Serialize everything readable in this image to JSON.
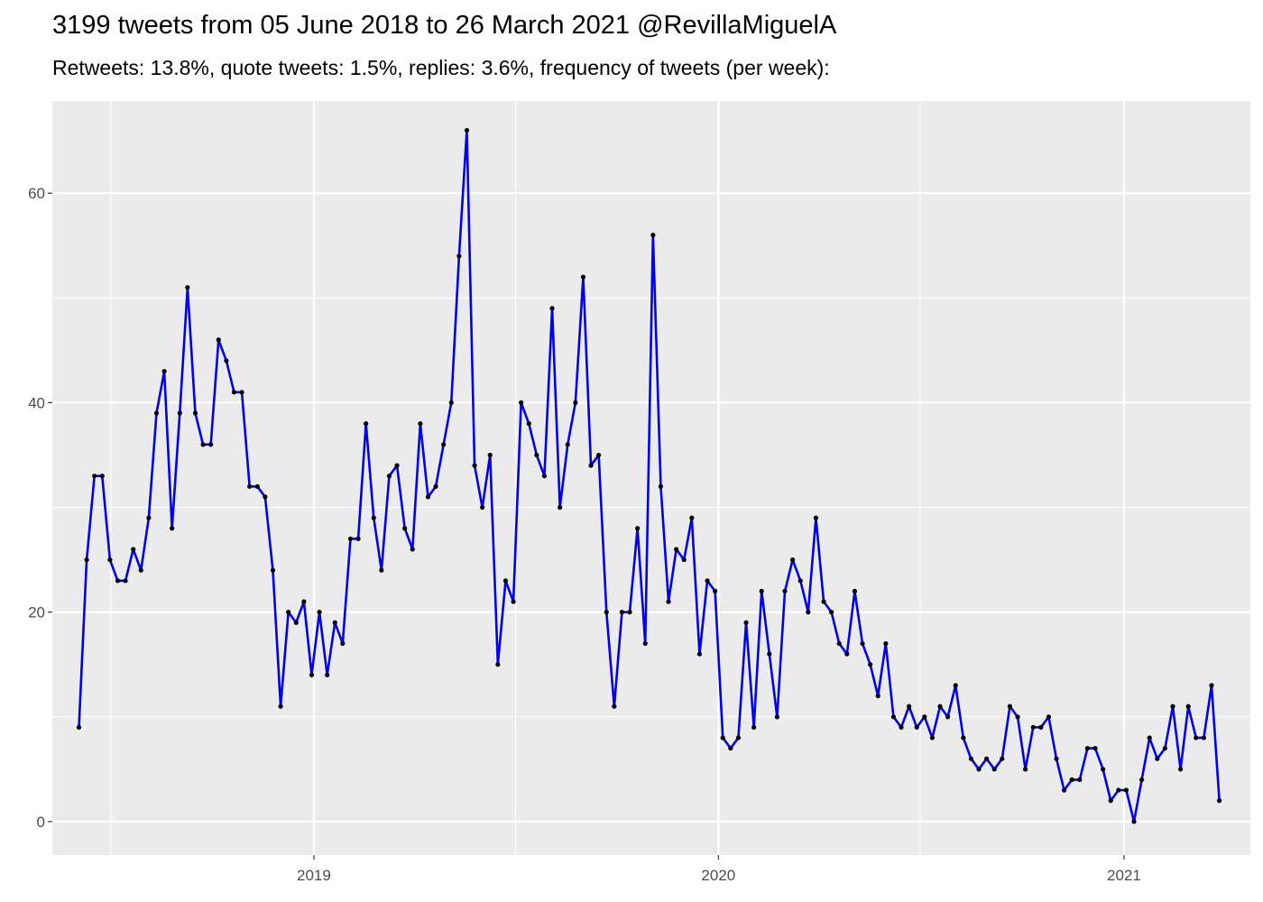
{
  "chart_data": {
    "type": "line",
    "title": "3199 tweets from 05 June 2018 to 26 March 2021 @RevillaMiguelA",
    "subtitle": "Retweets: 13.8%, quote tweets: 1.5%, replies: 3.6%, frequency of tweets (per week):",
    "xlabel": "",
    "ylabel": "",
    "x_start": "2018-06-03",
    "x_step_days": 7,
    "xlim": [
      "2018-05-10",
      "2021-04-25"
    ],
    "ylim": [
      -3.2,
      68.8
    ],
    "y_ticks": [
      0,
      20,
      40,
      60
    ],
    "x_ticks": [
      {
        "label": "2019",
        "date": "2019-01-01"
      },
      {
        "label": "2020",
        "date": "2020-01-01"
      },
      {
        "label": "2021",
        "date": "2021-01-01"
      }
    ],
    "x_minor_dates": [
      "2018-07-02",
      "2019-07-02",
      "2020-07-01"
    ],
    "grid": true,
    "legend": "none",
    "line_color": "#0000ee",
    "point_color": "#000000",
    "panel_color": "#ebebeb",
    "values": [
      9,
      25,
      33,
      33,
      25,
      23,
      23,
      26,
      24,
      29,
      39,
      43,
      28,
      39,
      51,
      39,
      36,
      36,
      46,
      44,
      41,
      41,
      32,
      32,
      31,
      24,
      11,
      20,
      19,
      21,
      14,
      20,
      14,
      19,
      17,
      27,
      27,
      38,
      29,
      24,
      33,
      34,
      28,
      26,
      38,
      31,
      32,
      36,
      40,
      54,
      66,
      34,
      30,
      35,
      15,
      23,
      21,
      40,
      38,
      35,
      33,
      49,
      30,
      36,
      40,
      52,
      34,
      35,
      20,
      11,
      20,
      20,
      28,
      17,
      56,
      32,
      21,
      26,
      25,
      29,
      16,
      23,
      22,
      8,
      7,
      8,
      19,
      9,
      22,
      16,
      10,
      22,
      25,
      23,
      20,
      29,
      21,
      20,
      17,
      16,
      22,
      17,
      15,
      12,
      17,
      10,
      9,
      11,
      9,
      10,
      8,
      11,
      10,
      13,
      8,
      6,
      5,
      6,
      5,
      6,
      11,
      10,
      5,
      9,
      9,
      10,
      6,
      3,
      4,
      4,
      7,
      7,
      5,
      2,
      3,
      3,
      0,
      4,
      8,
      6,
      7,
      11,
      5,
      11,
      8,
      8,
      13,
      2
    ]
  }
}
